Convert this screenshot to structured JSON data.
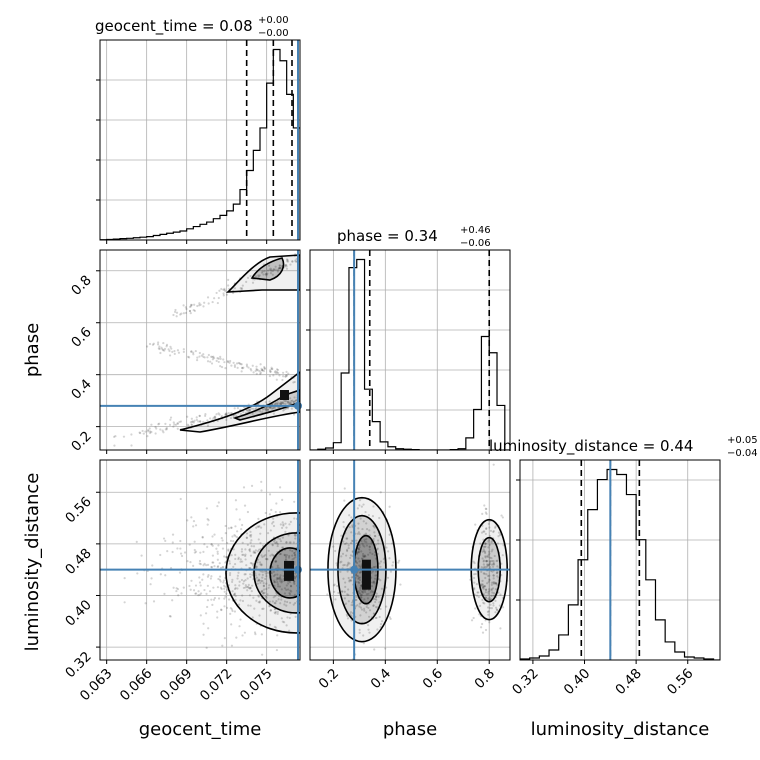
{
  "chart_data": {
    "type": "corner",
    "parameters": [
      "geocent_time",
      "phase",
      "luminosity_distance"
    ],
    "truth_color": "#4682b4",
    "truths": {
      "geocent_time": 0.0774,
      "phase": 0.28,
      "luminosity_distance": 0.44
    },
    "titles": {
      "geocent_time": {
        "text": "geocent_time = 0.08",
        "plus": "+0.00",
        "minus": "−0.00"
      },
      "phase": {
        "text": "phase = 0.34",
        "plus": "+0.46",
        "minus": "−0.06"
      },
      "luminosity_distance": {
        "text": "luminosity_distance = 0.44",
        "plus": "+0.05",
        "minus": "−0.04"
      }
    },
    "axis_labels": {
      "x": [
        "geocent_time",
        "phase",
        "luminosity_distance"
      ],
      "y": [
        "phase",
        "luminosity_distance"
      ]
    },
    "ticks": {
      "geocent_time": [
        "0.063",
        "0.066",
        "0.069",
        "0.072",
        "0.075"
      ],
      "phase": [
        "0.2",
        "0.4",
        "0.6",
        "0.8"
      ],
      "luminosity_distance": [
        "0.32",
        "0.40",
        "0.48",
        "0.56"
      ]
    },
    "ranges": {
      "geocent_time": [
        0.0625,
        0.0775
      ],
      "phase": [
        0.11,
        0.88
      ],
      "luminosity_distance": [
        0.3,
        0.61
      ]
    },
    "quantiles": {
      "geocent_time": [
        0.0735,
        0.0755,
        0.0769
      ],
      "phase": [
        0.28,
        0.34,
        0.8
      ],
      "luminosity_distance": [
        0.395,
        0.44,
        0.485
      ]
    },
    "hist_geocent_time": {
      "edges": [
        0.0625,
        0.063,
        0.0635,
        0.064,
        0.0645,
        0.065,
        0.0655,
        0.066,
        0.0665,
        0.067,
        0.0675,
        0.068,
        0.0685,
        0.069,
        0.0695,
        0.07,
        0.0705,
        0.071,
        0.0715,
        0.072,
        0.0725,
        0.073,
        0.0735,
        0.074,
        0.0745,
        0.075,
        0.0755,
        0.076,
        0.0765,
        0.077,
        0.0775
      ],
      "counts": [
        0.3,
        0.5,
        0.8,
        1.2,
        1.5,
        2,
        2.5,
        3,
        4,
        5,
        6,
        7,
        8,
        10,
        12,
        14,
        16,
        19,
        22,
        26,
        32,
        45,
        62,
        80,
        100,
        140,
        170,
        160,
        130,
        100
      ]
    },
    "hist_phase": {
      "edges": [
        0.11,
        0.14,
        0.17,
        0.2,
        0.23,
        0.26,
        0.29,
        0.32,
        0.35,
        0.38,
        0.41,
        0.44,
        0.47,
        0.5,
        0.53,
        0.56,
        0.59,
        0.62,
        0.65,
        0.68,
        0.71,
        0.74,
        0.77,
        0.8,
        0.83,
        0.86,
        0.88
      ],
      "counts": [
        0,
        2,
        5,
        18,
        190,
        450,
        470,
        150,
        70,
        20,
        8,
        3,
        2,
        1,
        0,
        0,
        0,
        0,
        1,
        3,
        30,
        100,
        280,
        240,
        110,
        0
      ]
    },
    "hist_luminosity_distance": {
      "edges": [
        0.3,
        0.315,
        0.33,
        0.345,
        0.36,
        0.375,
        0.39,
        0.405,
        0.42,
        0.435,
        0.45,
        0.465,
        0.48,
        0.495,
        0.51,
        0.525,
        0.54,
        0.555,
        0.57,
        0.585,
        0.6,
        0.61
      ],
      "counts": [
        1,
        2,
        4,
        10,
        25,
        55,
        100,
        150,
        180,
        190,
        185,
        165,
        120,
        80,
        40,
        18,
        8,
        3,
        2,
        1,
        0
      ]
    }
  }
}
